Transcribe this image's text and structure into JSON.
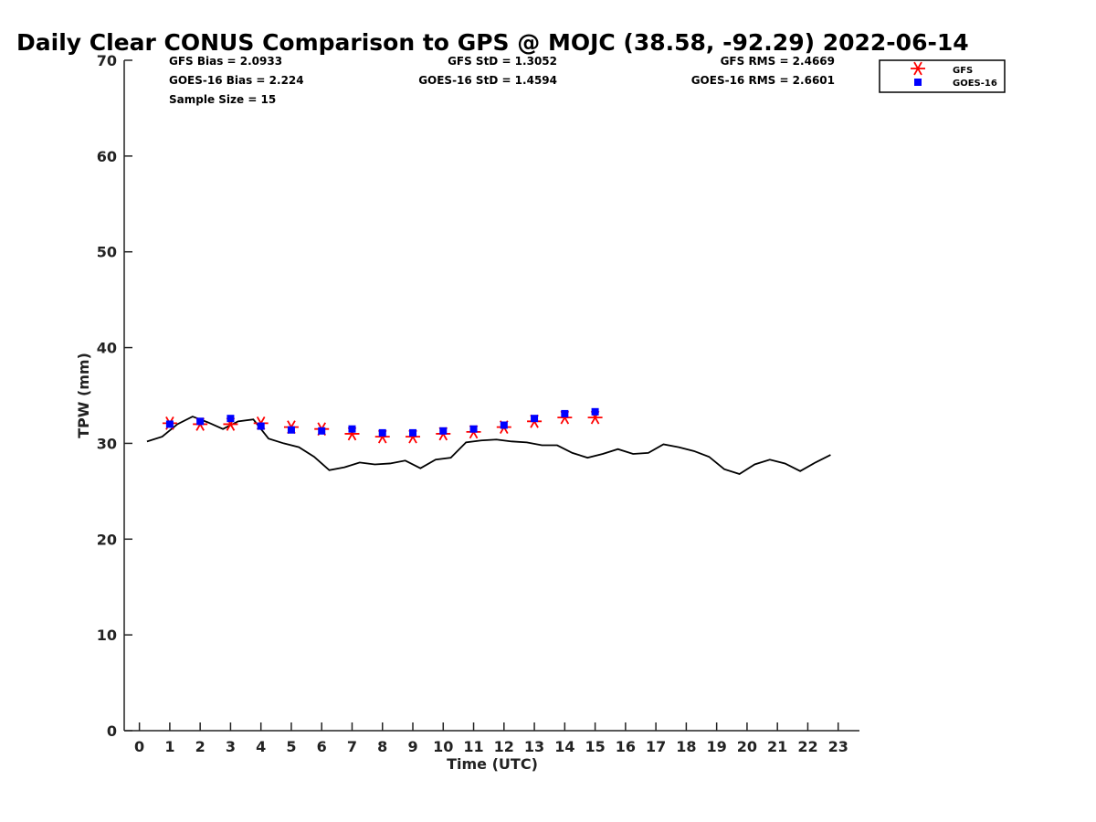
{
  "chart_data": {
    "type": "scatter",
    "title": "Daily Clear CONUS Comparison to GPS @ MOJC (38.58, -92.29) 2022-06-14",
    "xlabel": "Time (UTC)",
    "ylabel": "TPW (mm)",
    "xlim": [
      -0.5,
      23.7
    ],
    "ylim": [
      0,
      70
    ],
    "xticks": [
      0,
      1,
      2,
      3,
      4,
      5,
      6,
      7,
      8,
      9,
      10,
      11,
      12,
      13,
      14,
      15,
      16,
      17,
      18,
      19,
      20,
      21,
      22,
      23
    ],
    "yticks": [
      0,
      10,
      20,
      30,
      40,
      50,
      60,
      70
    ],
    "grid": false,
    "legend_position": "top-right",
    "stats": {
      "gfs_bias": "GFS Bias = 2.0933",
      "goes_bias": "GOES-16 Bias = 2.224",
      "sample_size": "Sample Size = 15",
      "gfs_std": "GFS StD = 1.3052",
      "goes_std": "GOES-16 StD = 1.4594",
      "gfs_rms": "GFS RMS = 2.4669",
      "goes_rms": "GOES-16 RMS = 2.6601"
    },
    "series": [
      {
        "name": "GFS",
        "marker": "asterisk",
        "color": "#ff0000",
        "x": [
          1,
          2,
          3,
          4,
          5,
          6,
          7,
          8,
          9,
          10,
          11,
          12,
          13,
          14,
          15
        ],
        "y": [
          32.1,
          32.0,
          32.0,
          32.1,
          31.7,
          31.5,
          31.0,
          30.7,
          30.7,
          31.0,
          31.2,
          31.7,
          32.3,
          32.7,
          32.7
        ]
      },
      {
        "name": "GOES-16",
        "marker": "square",
        "color": "#0000ff",
        "x": [
          1,
          2,
          3,
          4,
          5,
          6,
          7,
          8,
          9,
          10,
          11,
          12,
          13,
          14,
          15
        ],
        "y": [
          32.0,
          32.3,
          32.6,
          31.8,
          31.4,
          31.3,
          31.5,
          31.1,
          31.1,
          31.3,
          31.5,
          31.9,
          32.6,
          33.1,
          33.3
        ]
      },
      {
        "marker": "line",
        "color": "#000000",
        "x": [
          0.25,
          0.75,
          1.25,
          1.75,
          2.25,
          2.75,
          3.25,
          3.75,
          4.25,
          4.75,
          5.25,
          5.75,
          6.25,
          6.75,
          7.25,
          7.75,
          8.25,
          8.75,
          9.25,
          9.75,
          10.25,
          10.75,
          11.25,
          11.75,
          12.25,
          12.75,
          13.25,
          13.75,
          14.25,
          14.75,
          15.25,
          15.75,
          16.25,
          16.75,
          17.25,
          17.75,
          18.25,
          18.75,
          19.25,
          19.75,
          20.25,
          20.75,
          21.25,
          21.75,
          22.25,
          22.75
        ],
        "y": [
          30.2,
          30.7,
          32.0,
          32.8,
          32.2,
          31.5,
          32.3,
          32.5,
          30.5,
          30.0,
          29.6,
          28.6,
          27.2,
          27.5,
          28.0,
          27.8,
          27.9,
          28.2,
          27.4,
          28.3,
          28.5,
          30.1,
          30.3,
          30.4,
          30.2,
          30.1,
          29.8,
          29.8,
          29.0,
          28.5,
          28.9,
          29.4,
          28.9,
          29.0,
          29.9,
          29.6,
          29.2,
          28.6,
          27.3,
          26.8,
          27.8,
          28.3,
          27.9,
          27.1,
          28.0,
          28.8
        ]
      }
    ]
  }
}
